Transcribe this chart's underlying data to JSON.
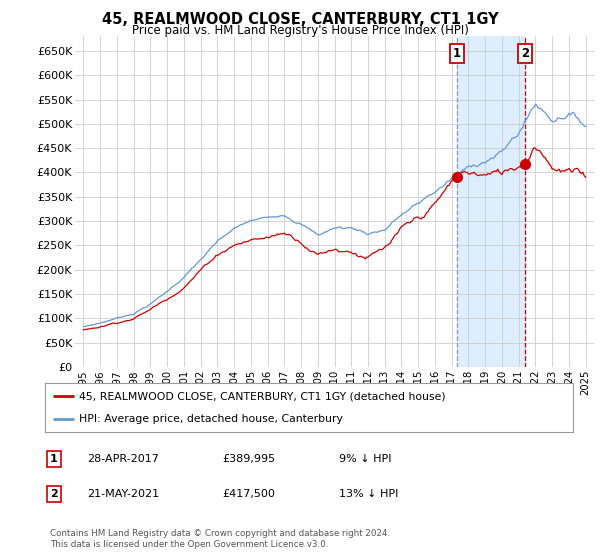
{
  "title": "45, REALMWOOD CLOSE, CANTERBURY, CT1 1GY",
  "subtitle": "Price paid vs. HM Land Registry's House Price Index (HPI)",
  "legend_line1": "45, REALMWOOD CLOSE, CANTERBURY, CT1 1GY (detached house)",
  "legend_line2": "HPI: Average price, detached house, Canterbury",
  "footnote": "Contains HM Land Registry data © Crown copyright and database right 2024.\nThis data is licensed under the Open Government Licence v3.0.",
  "transaction1_label": "1",
  "transaction1_date": "28-APR-2017",
  "transaction1_price": "£389,995",
  "transaction1_hpi": "9% ↓ HPI",
  "transaction2_label": "2",
  "transaction2_date": "21-MAY-2021",
  "transaction2_price": "£417,500",
  "transaction2_hpi": "13% ↓ HPI",
  "hpi_color": "#6699cc",
  "price_color": "#cc0000",
  "background_color": "#ffffff",
  "grid_color": "#cccccc",
  "vline1_color": "#8899bb",
  "vline2_color": "#cc0000",
  "shade_color": "#ddeeff",
  "marker1_x": 2017.32,
  "marker1_y": 389995,
  "marker2_x": 2021.38,
  "marker2_y": 417500,
  "vline1_x": 2017.32,
  "vline2_x": 2021.38,
  "ylim_min": 0,
  "ylim_max": 680000,
  "xlim_min": 1994.5,
  "xlim_max": 2025.5,
  "yticks": [
    0,
    50000,
    100000,
    150000,
    200000,
    250000,
    300000,
    350000,
    400000,
    450000,
    500000,
    550000,
    600000,
    650000
  ],
  "ytick_labels": [
    "£0",
    "£50K",
    "£100K",
    "£150K",
    "£200K",
    "£250K",
    "£300K",
    "£350K",
    "£400K",
    "£450K",
    "£500K",
    "£550K",
    "£600K",
    "£650K"
  ],
  "xticks": [
    1995,
    1996,
    1997,
    1998,
    1999,
    2000,
    2001,
    2002,
    2003,
    2004,
    2005,
    2006,
    2007,
    2008,
    2009,
    2010,
    2011,
    2012,
    2013,
    2014,
    2015,
    2016,
    2017,
    2018,
    2019,
    2020,
    2021,
    2022,
    2023,
    2024,
    2025
  ]
}
